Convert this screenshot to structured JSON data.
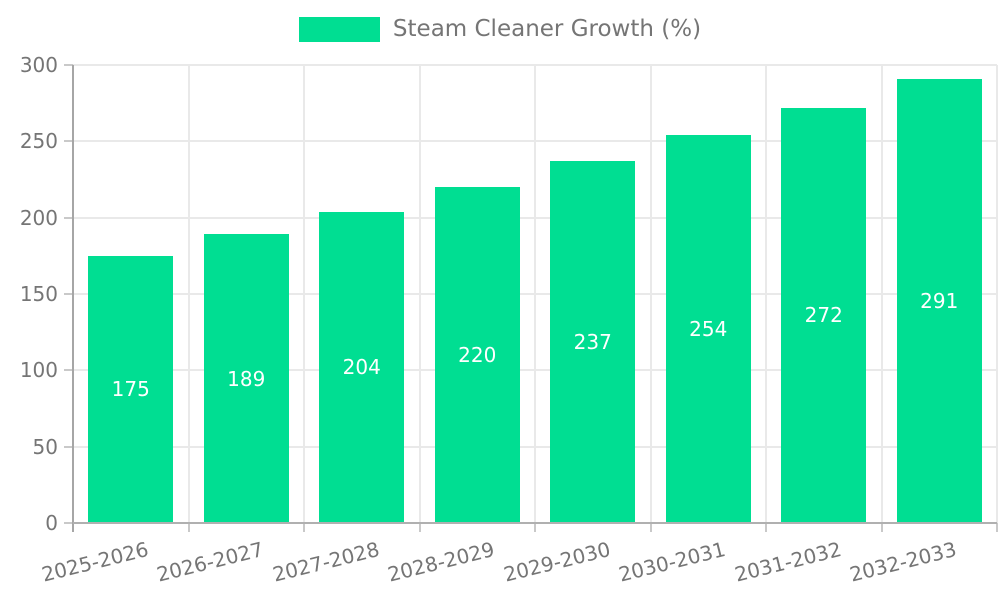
{
  "legend": {
    "label": "Steam Cleaner Growth (%)"
  },
  "chart_data": {
    "type": "bar",
    "title": "Steam Cleaner Growth (%)",
    "categories": [
      "2025-2026",
      "2026-2027",
      "2027-2028",
      "2028-2029",
      "2029-2030",
      "2030-2031",
      "2031-2032",
      "2032-2033"
    ],
    "values": [
      175,
      189,
      204,
      220,
      237,
      254,
      272,
      291
    ],
    "xlabel": "",
    "ylabel": "",
    "ylim": [
      0,
      300
    ],
    "yticks": [
      0,
      50,
      100,
      150,
      200,
      250,
      300
    ],
    "grid": true,
    "legend_position": "top",
    "x_tick_rotation_deg": -14,
    "bar_color": "#00DE92",
    "value_label_color": "#FFFFFF",
    "axis_text_color": "#757575",
    "grid_color": "#E9E9E9",
    "axis_line_color": "#A6A6A6"
  }
}
